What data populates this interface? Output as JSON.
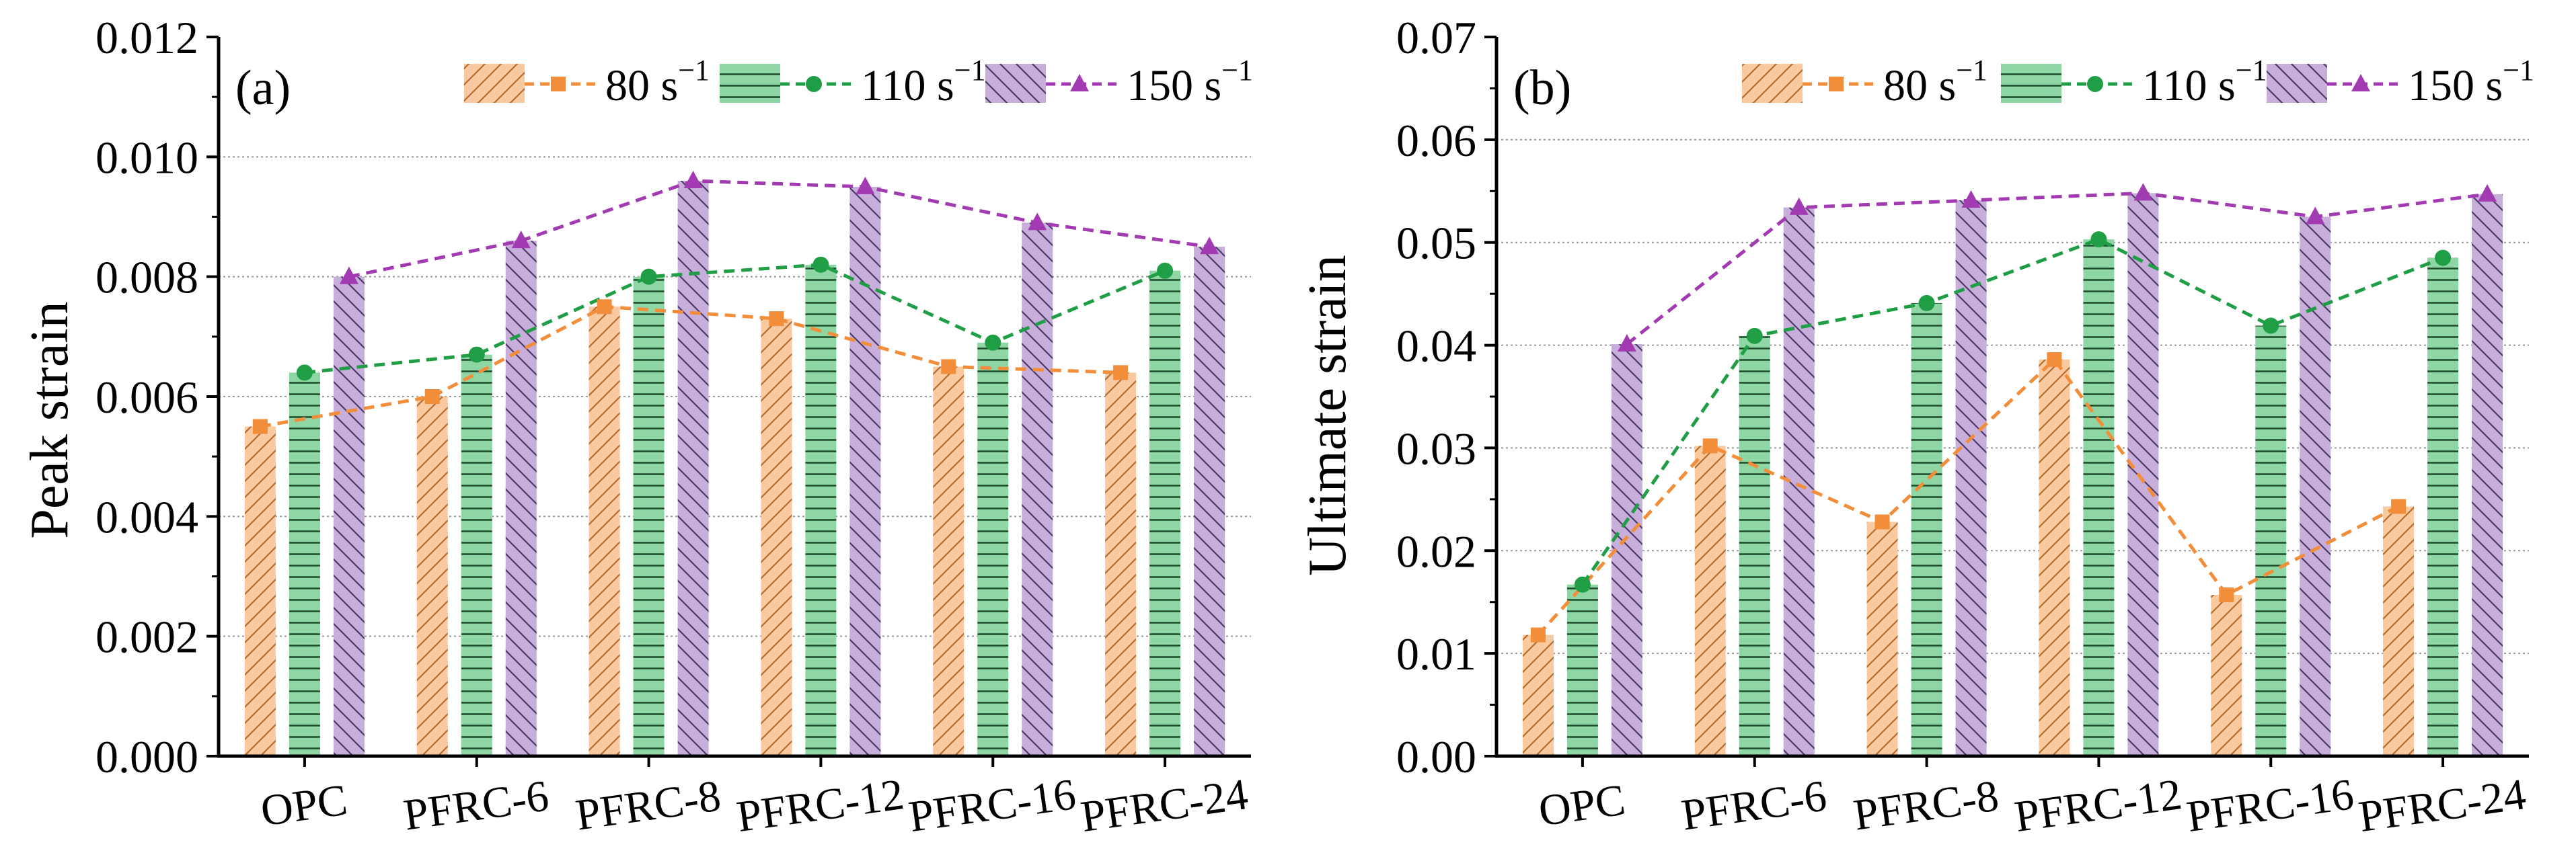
{
  "chart_data": [
    {
      "panel_label": "(a)",
      "type": "bar",
      "overlay": "line",
      "ylabel": "Peak strain",
      "xlabel": "",
      "ylim": [
        0,
        0.012
      ],
      "yticks": [
        "0.000",
        "0.002",
        "0.004",
        "0.006",
        "0.008",
        "0.010",
        "0.012"
      ],
      "grid": "horizontal dotted",
      "legend_position": "top",
      "categories": [
        "OPC",
        "PFRC-6",
        "PFRC-8",
        "PFRC-12",
        "PFRC-16",
        "PFRC-24"
      ],
      "series": [
        {
          "name": "80",
          "legend_label": "80 s",
          "superscript": "−1",
          "values": [
            0.0055,
            0.006,
            0.0075,
            0.0073,
            0.0065,
            0.0064
          ]
        },
        {
          "name": "110",
          "legend_label": "110 s",
          "superscript": "−1",
          "values": [
            0.0064,
            0.0067,
            0.008,
            0.0082,
            0.0069,
            0.0081
          ]
        },
        {
          "name": "150",
          "legend_label": "150 s",
          "superscript": "−1",
          "values": [
            0.008,
            0.0086,
            0.0096,
            0.0095,
            0.0089,
            0.0085
          ]
        }
      ]
    },
    {
      "panel_label": "(b)",
      "type": "bar",
      "overlay": "line",
      "ylabel": "Ultimate strain",
      "xlabel": "",
      "ylim": [
        0,
        0.07
      ],
      "yticks": [
        "0.00",
        "0.01",
        "0.02",
        "0.03",
        "0.04",
        "0.05",
        "0.06",
        "0.07"
      ],
      "grid": "horizontal dotted",
      "legend_position": "top",
      "categories": [
        "OPC",
        "PFRC-6",
        "PFRC-8",
        "PFRC-12",
        "PFRC-16",
        "PFRC-24"
      ],
      "series": [
        {
          "name": "80",
          "legend_label": "80 s",
          "superscript": "−1",
          "values": [
            0.0118,
            0.0302,
            0.0228,
            0.0386,
            0.0157,
            0.0243
          ]
        },
        {
          "name": "110",
          "legend_label": "110 s",
          "superscript": "−1",
          "values": [
            0.0167,
            0.0409,
            0.0441,
            0.0503,
            0.0419,
            0.0485
          ]
        },
        {
          "name": "150",
          "legend_label": "150 s",
          "superscript": "−1",
          "values": [
            0.0401,
            0.0534,
            0.0541,
            0.0548,
            0.0525,
            0.0547
          ]
        }
      ]
    }
  ],
  "colors": {
    "series": [
      {
        "fill": "#f9c9a0",
        "hatch": "#b86a2c",
        "line": "#f28d3a"
      },
      {
        "fill": "#8ed6a4",
        "hatch": "#1c4a2a",
        "line": "#1f9e45"
      },
      {
        "fill": "#c7aedb",
        "hatch": "#4d3a6a",
        "line": "#a23ab1"
      }
    ],
    "grid": "#999999",
    "axis": "#000000"
  }
}
